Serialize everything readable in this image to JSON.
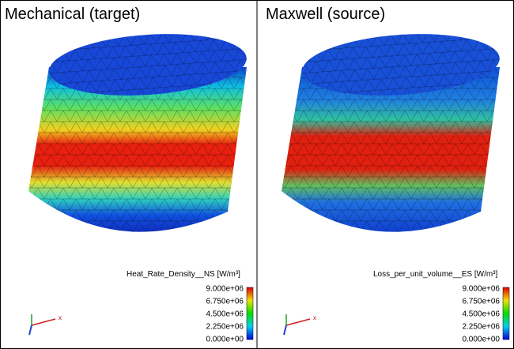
{
  "panels": [
    {
      "title": "Mechanical (target)",
      "legend": {
        "title": "Heat_Rate_Density__NS [W/m³]",
        "ticks": [
          "9.000e+06",
          "6.750e+06",
          "4.500e+06",
          "2.250e+06",
          "0.000e+00"
        ]
      },
      "axis_label": "x"
    },
    {
      "title": "Maxwell (source)",
      "legend": {
        "title": "Loss_per_unit_volume__ES [W/m³]",
        "ticks": [
          "9.000e+06",
          "6.750e+06",
          "4.500e+06",
          "2.250e+06",
          "0.000e+00"
        ]
      },
      "axis_label": "x"
    }
  ]
}
